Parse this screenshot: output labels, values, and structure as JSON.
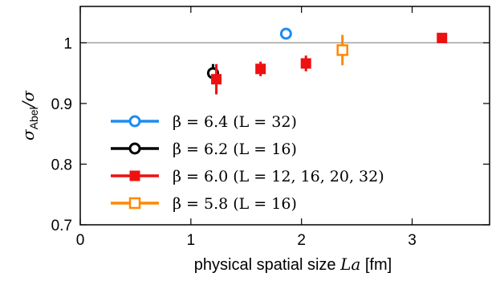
{
  "chart_data": {
    "type": "scatter",
    "xlabel": "physical spatial size La [fm]",
    "xlabel_text": "physical spatial size ",
    "xlabel_math": "La",
    "xlabel_unit": " [fm]",
    "ylabel_main": "σ",
    "ylabel_sub": "Abel",
    "ylabel_rest": "/σ",
    "xlim": [
      0,
      3.7
    ],
    "ylim": [
      0.7,
      1.06
    ],
    "x_ticks": [
      0,
      1,
      2,
      3
    ],
    "x_tick_labels": [
      "0",
      "1",
      "2",
      "3"
    ],
    "y_ticks": [
      0.7,
      0.8,
      0.9,
      1.0
    ],
    "y_tick_labels": [
      "0.7",
      "0.8",
      "0.9",
      "1"
    ],
    "reference_line": 1.0,
    "legend_position": "bottom-left",
    "series": [
      {
        "name": "β = 6.4 (L = 32)",
        "color": "#1e8cf0",
        "marker": "open-circle",
        "points": [
          {
            "x": 1.86,
            "y": 1.015,
            "err": 0.004
          }
        ]
      },
      {
        "name": "β = 6.2 (L = 16)",
        "color": "#000000",
        "marker": "open-circle",
        "points": [
          {
            "x": 1.2,
            "y": 0.95,
            "err": 0.015
          }
        ]
      },
      {
        "name": "β = 6.0 (L = 12, 16, 20, 32)",
        "color": "#ee1111",
        "marker": "filled-square",
        "points": [
          {
            "x": 1.23,
            "y": 0.94,
            "err": 0.025
          },
          {
            "x": 1.63,
            "y": 0.957,
            "err": 0.012
          },
          {
            "x": 2.04,
            "y": 0.966,
            "err": 0.013
          },
          {
            "x": 3.27,
            "y": 1.008,
            "err": 0.006
          }
        ]
      },
      {
        "name": "β = 5.8 (L = 16)",
        "color": "#ff8800",
        "marker": "open-square",
        "points": [
          {
            "x": 2.37,
            "y": 0.988,
            "err": 0.025
          }
        ]
      }
    ]
  }
}
